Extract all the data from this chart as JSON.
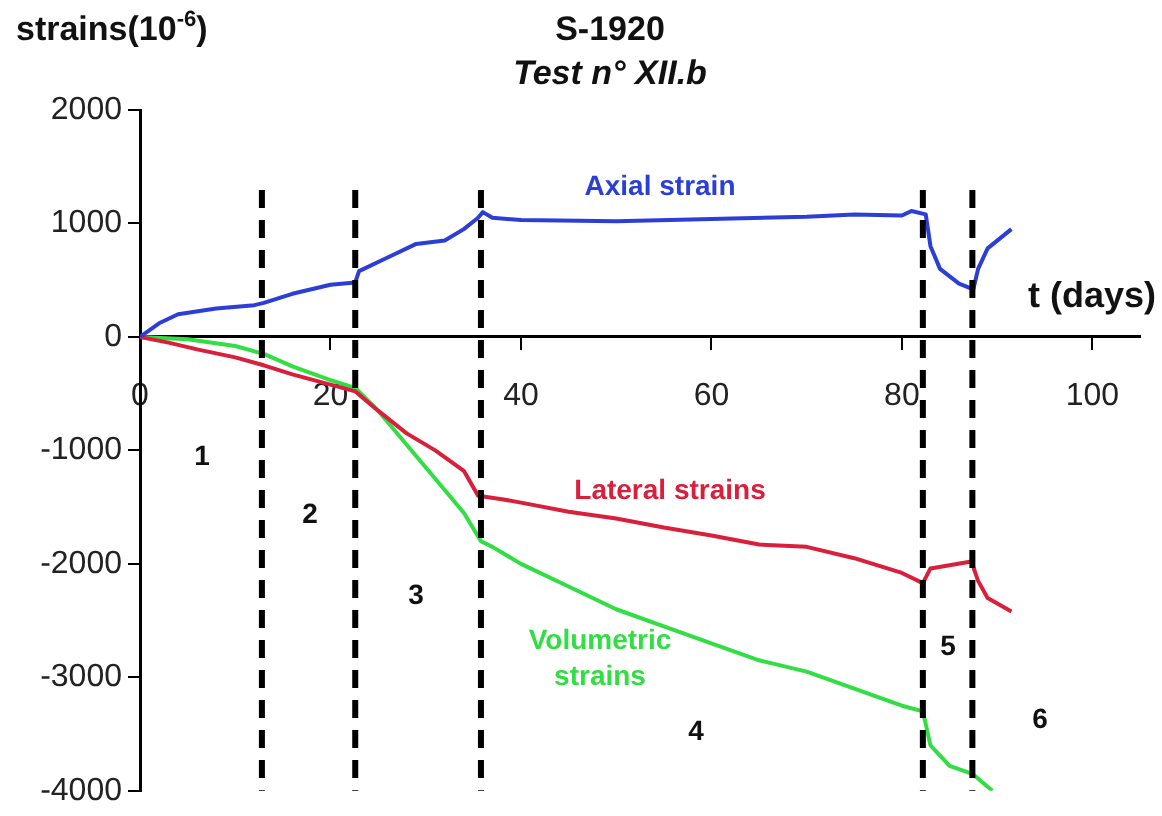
{
  "chart_data": {
    "type": "line",
    "title": "S-1920",
    "subtitle": "Test n° XII.b",
    "xlabel": "t (days)",
    "ylabel": "strains(10$^{-6}$)",
    "xlim": [
      0,
      105
    ],
    "xticks": [
      0,
      20,
      40,
      60,
      80,
      100
    ],
    "ylim": [
      -4000,
      2000
    ],
    "yticks": [
      -4000,
      -3000,
      -2000,
      -1000,
      0,
      1000,
      2000
    ],
    "grid": false,
    "legend": false,
    "marker": "none",
    "line_style": "solid",
    "series": [
      {
        "name": "Axial strain",
        "color": "#2b3fd8",
        "x": [
          0,
          2,
          4,
          8,
          12,
          13,
          16,
          20,
          22.6,
          23,
          26,
          29,
          32,
          34,
          35.5,
          36,
          37,
          40,
          50,
          60,
          70,
          75,
          80,
          81,
          82.5,
          83,
          84,
          86,
          87.5,
          88,
          89,
          91.5
        ],
        "values": [
          0,
          120,
          200,
          250,
          280,
          300,
          380,
          460,
          480,
          580,
          700,
          820,
          850,
          950,
          1050,
          1100,
          1050,
          1030,
          1020,
          1040,
          1060,
          1080,
          1070,
          1110,
          1080,
          800,
          600,
          470,
          420,
          600,
          780,
          950
        ]
      },
      {
        "name": "Lateral strains",
        "color": "#d8203c",
        "x": [
          0,
          3,
          6,
          10,
          13,
          16,
          20,
          22.6,
          25,
          28,
          31,
          34,
          35.5,
          38,
          40,
          45,
          50,
          55,
          60,
          65,
          70,
          75,
          80,
          82.2,
          83,
          87.3,
          88,
          89,
          91.5
        ],
        "values": [
          0,
          -50,
          -110,
          -180,
          -250,
          -330,
          -420,
          -480,
          -650,
          -850,
          -1000,
          -1180,
          -1400,
          -1430,
          -1460,
          -1540,
          -1600,
          -1680,
          -1750,
          -1830,
          -1850,
          -1950,
          -2080,
          -2170,
          -2040,
          -1980,
          -2150,
          -2300,
          -2420
        ]
      },
      {
        "name": "Volumetric strains",
        "color": "#33dd44",
        "x": [
          0,
          5,
          10,
          13,
          16,
          20,
          22.6,
          25,
          28,
          31,
          34,
          35.8,
          37,
          40,
          45,
          50,
          55,
          60,
          65,
          70,
          75,
          80,
          82.2,
          83,
          85,
          87.4,
          89.5
        ],
        "values": [
          0,
          -20,
          -80,
          -150,
          -260,
          -380,
          -450,
          -650,
          -950,
          -1250,
          -1550,
          -1800,
          -1850,
          -2000,
          -2200,
          -2400,
          -2550,
          -2700,
          -2850,
          -2950,
          -3100,
          -3250,
          -3300,
          -3600,
          -3780,
          -3850,
          -4000
        ]
      }
    ],
    "ref_lines": [
      {
        "axis": "x",
        "value": 12.8,
        "color": "#000000",
        "line_style": "dashed"
      },
      {
        "axis": "x",
        "value": 22.6,
        "color": "#000000",
        "line_style": "dashed"
      },
      {
        "axis": "x",
        "value": 35.8,
        "color": "#000000",
        "line_style": "dashed"
      },
      {
        "axis": "x",
        "value": 82.2,
        "color": "#000000",
        "line_style": "dashed"
      },
      {
        "axis": "x",
        "value": 87.4,
        "color": "#000000",
        "line_style": "dashed"
      }
    ],
    "annotations": [
      "1",
      "2",
      "3",
      "4",
      "5",
      "6"
    ]
  }
}
